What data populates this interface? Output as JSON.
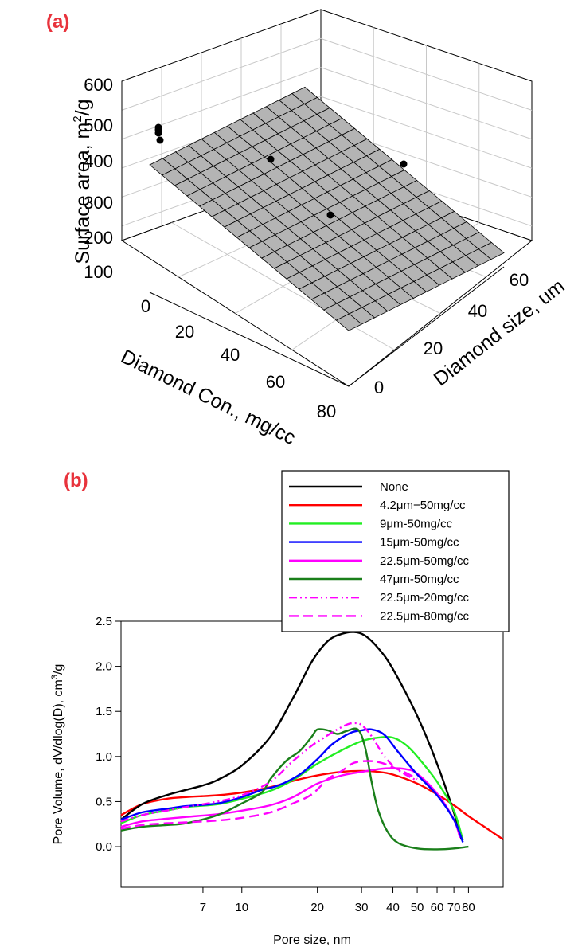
{
  "colors": {
    "label_red": "#e8333c",
    "surface_fill": "#b4b4b4",
    "grid": "#c8c8c8"
  },
  "chart_data": [
    {
      "panel": "(a)",
      "type": "scatter",
      "subtype": "3d-surface",
      "zlabel_prefix": "Surface area, m",
      "zlabel_sup": "2",
      "zlabel_suffix": "/g",
      "xlabel": "Diamond Con., mg/cc",
      "ylabel": "Diamond size, um",
      "zlim": [
        50,
        600
      ],
      "z_ticks": [
        "100",
        "200",
        "300",
        "400",
        "500",
        "600"
      ],
      "x_ticks": [
        "0",
        "20",
        "40",
        "60",
        "80"
      ],
      "y_ticks": [
        "0",
        "20",
        "40",
        "60"
      ],
      "points_note": "measured samples (Diamond Con., Diamond size, Surface area)",
      "points": [
        {
          "con": 0,
          "size": 0,
          "area": 480
        },
        {
          "con": 0,
          "size": 0,
          "area": 485
        },
        {
          "con": 0,
          "size": 0,
          "area": 470
        },
        {
          "con": 0,
          "size": 0,
          "area": 445
        },
        {
          "con": 50,
          "size": 22.5,
          "area": 400
        },
        {
          "con": 80,
          "size": 22.5,
          "area": 300
        },
        {
          "con": 50,
          "size": 47,
          "area": 385
        }
      ]
    },
    {
      "panel": "(b)",
      "type": "line",
      "xlabel": "Pore size, nm",
      "ylabel_prefix": "Pore Volume, dV/dlog(D), cm",
      "ylabel_sup": "3",
      "ylabel_suffix": "/g",
      "xscale": "log",
      "xlim": [
        3.3,
        110
      ],
      "ylim": [
        -0.45,
        2.5
      ],
      "x_ticks": [
        7,
        10,
        20,
        30,
        40,
        50,
        60,
        70,
        80
      ],
      "x_tick_labels": [
        "7",
        "10",
        "20",
        "30",
        "40",
        "50",
        "60",
        "70",
        "80"
      ],
      "y_ticks": [
        0.0,
        0.5,
        1.0,
        1.5,
        2.0,
        2.5
      ],
      "y_tick_labels": [
        "0.0",
        "0.5",
        "1.0",
        "1.5",
        "2.0",
        "2.5"
      ],
      "legend_position": "top-right",
      "series": [
        {
          "name": "None",
          "color": "#000000",
          "dash": "solid",
          "x": [
            3.3,
            4,
            5,
            6,
            7,
            8,
            10,
            13,
            16,
            19,
            22,
            25,
            28,
            31,
            35,
            40,
            50,
            60,
            70,
            75
          ],
          "y": [
            0.3,
            0.47,
            0.57,
            0.63,
            0.68,
            0.74,
            0.9,
            1.22,
            1.65,
            2.05,
            2.28,
            2.36,
            2.38,
            2.34,
            2.2,
            1.97,
            1.45,
            0.92,
            0.38,
            0.08
          ]
        },
        {
          "name": "4.2μm−50mg/cc",
          "color": "#ff0000",
          "dash": "solid",
          "x": [
            3.3,
            4,
            5,
            6,
            8,
            10,
            13,
            16,
            20,
            25,
            30,
            35,
            40,
            50,
            60,
            70,
            80,
            95,
            110
          ],
          "y": [
            0.35,
            0.47,
            0.53,
            0.55,
            0.57,
            0.6,
            0.66,
            0.73,
            0.79,
            0.83,
            0.84,
            0.83,
            0.8,
            0.7,
            0.58,
            0.46,
            0.34,
            0.2,
            0.08
          ]
        },
        {
          "name": "9μm-50mg/cc",
          "color": "#22ee22",
          "dash": "solid",
          "x": [
            3.3,
            4,
            5,
            6,
            8,
            10,
            13,
            16,
            20,
            25,
            30,
            35,
            40,
            45,
            50,
            60,
            70,
            76
          ],
          "y": [
            0.26,
            0.35,
            0.4,
            0.44,
            0.47,
            0.53,
            0.62,
            0.74,
            0.92,
            1.07,
            1.17,
            1.21,
            1.21,
            1.13,
            1.0,
            0.72,
            0.4,
            0.07
          ]
        },
        {
          "name": "15μm-50mg/cc",
          "color": "#0000ff",
          "dash": "solid",
          "x": [
            3.3,
            4,
            5,
            6,
            8,
            10,
            12,
            14,
            17,
            20,
            23,
            27,
            30,
            33,
            37,
            42,
            50,
            60,
            70,
            76
          ],
          "y": [
            0.3,
            0.38,
            0.42,
            0.45,
            0.48,
            0.55,
            0.63,
            0.68,
            0.8,
            0.97,
            1.14,
            1.26,
            1.29,
            1.3,
            1.24,
            1.05,
            0.8,
            0.57,
            0.3,
            0.05
          ]
        },
        {
          "name": "22.5μm-50mg/cc",
          "color": "#ff00ff",
          "dash": "solid",
          "x": [
            3.3,
            4,
            5,
            6,
            8,
            10,
            13,
            16,
            20,
            25,
            30,
            35,
            40,
            45,
            50,
            60,
            70,
            74
          ],
          "y": [
            0.22,
            0.28,
            0.31,
            0.33,
            0.36,
            0.4,
            0.46,
            0.55,
            0.7,
            0.79,
            0.83,
            0.86,
            0.87,
            0.86,
            0.81,
            0.59,
            0.3,
            0.1
          ]
        },
        {
          "name": "47μm-50mg/cc",
          "color": "#1a7f1a",
          "dash": "solid",
          "x": [
            3.3,
            4,
            5,
            6,
            8,
            10,
            12,
            13,
            15,
            17,
            19,
            20,
            22,
            24,
            26,
            29,
            31,
            33,
            35,
            38,
            42,
            50,
            60,
            70,
            80
          ],
          "y": [
            0.18,
            0.22,
            0.24,
            0.26,
            0.35,
            0.48,
            0.6,
            0.75,
            0.95,
            1.06,
            1.22,
            1.3,
            1.29,
            1.25,
            1.28,
            1.3,
            1.1,
            0.7,
            0.4,
            0.17,
            0.04,
            -0.02,
            -0.03,
            -0.02,
            0.0
          ]
        },
        {
          "name": "22.5μm-20mg/cc",
          "color": "#ff00ff",
          "dash": "dashdotdot",
          "x": [
            3.3,
            4,
            5,
            6,
            8,
            10,
            13,
            16,
            19,
            21,
            23,
            26,
            28,
            30,
            33,
            37,
            42,
            50
          ],
          "y": [
            0.28,
            0.35,
            0.4,
            0.44,
            0.5,
            0.57,
            0.72,
            0.95,
            1.12,
            1.2,
            1.27,
            1.35,
            1.37,
            1.35,
            1.22,
            1.0,
            0.85,
            0.73
          ]
        },
        {
          "name": "22.5μm-80mg/cc",
          "color": "#ff00ff",
          "dash": "dashed",
          "x": [
            3.3,
            4,
            5,
            6,
            8,
            10,
            13,
            16,
            19,
            22,
            25,
            28,
            32,
            36,
            40,
            45,
            50
          ],
          "y": [
            0.2,
            0.24,
            0.26,
            0.27,
            0.29,
            0.32,
            0.38,
            0.48,
            0.58,
            0.75,
            0.84,
            0.93,
            0.95,
            0.93,
            0.88,
            0.82,
            0.75
          ]
        }
      ]
    }
  ]
}
